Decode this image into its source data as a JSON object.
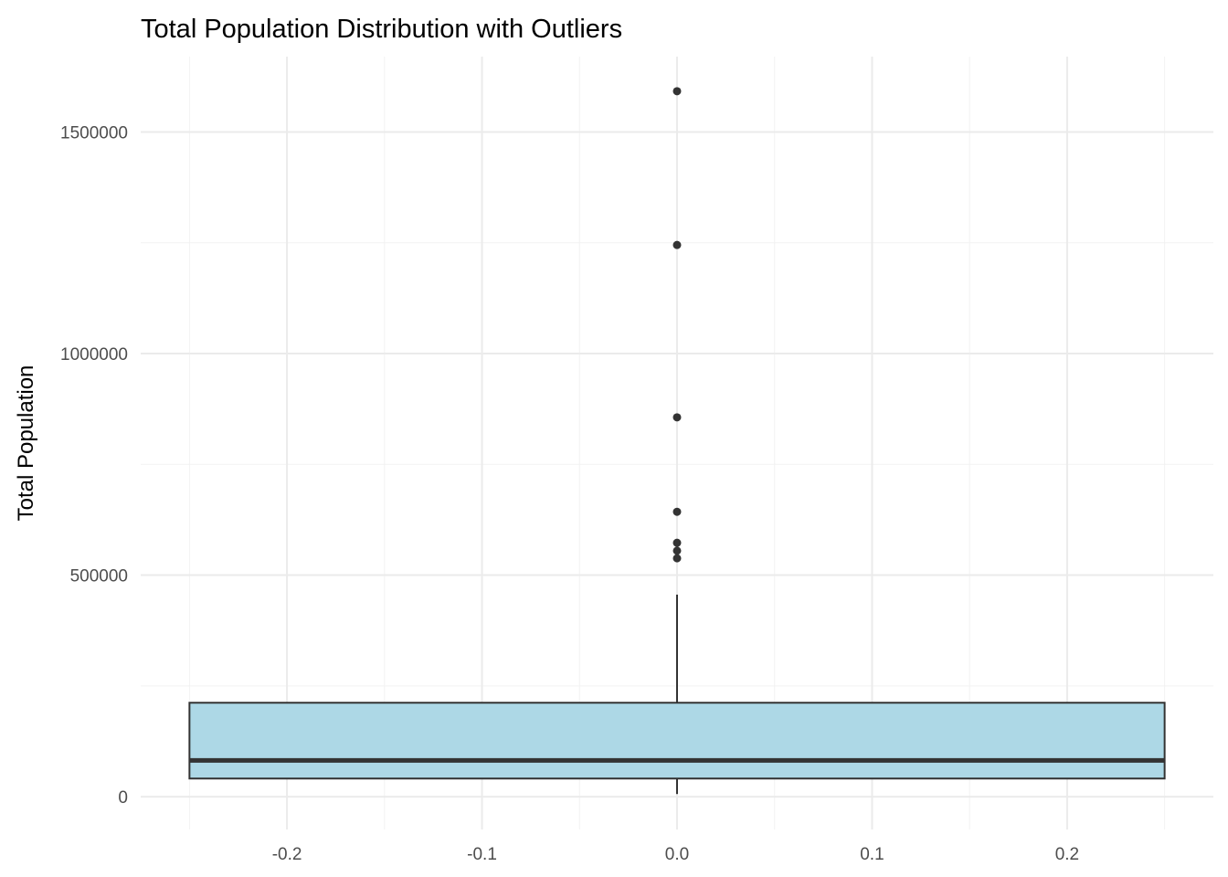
{
  "chart_data": {
    "type": "boxplot",
    "title": "Total Population Distribution with Outliers",
    "xlabel": "",
    "ylabel": "Total Population",
    "xlim": [
      -0.275,
      0.275
    ],
    "ylim": [
      -74000,
      1670000
    ],
    "x_ticks": [
      -0.2,
      -0.1,
      0.0,
      0.1,
      0.2
    ],
    "x_tick_labels": [
      "-0.2",
      "-0.1",
      "0.0",
      "0.1",
      "0.2"
    ],
    "y_ticks": [
      0,
      500000,
      1000000,
      1500000
    ],
    "y_tick_labels": [
      "0",
      "500000",
      "1000000",
      "1500000"
    ],
    "grid": true,
    "box": {
      "x_center": 0.0,
      "x_min": -0.25,
      "x_max": 0.25,
      "lower_whisker": 6000,
      "q1": 41000,
      "median": 82000,
      "q3": 212000,
      "upper_whisker": 456000,
      "fill": "#ADD8E6",
      "outline": "#333333"
    },
    "outliers": [
      538000,
      555000,
      573000,
      643000,
      856000,
      1245000,
      1592000
    ]
  }
}
